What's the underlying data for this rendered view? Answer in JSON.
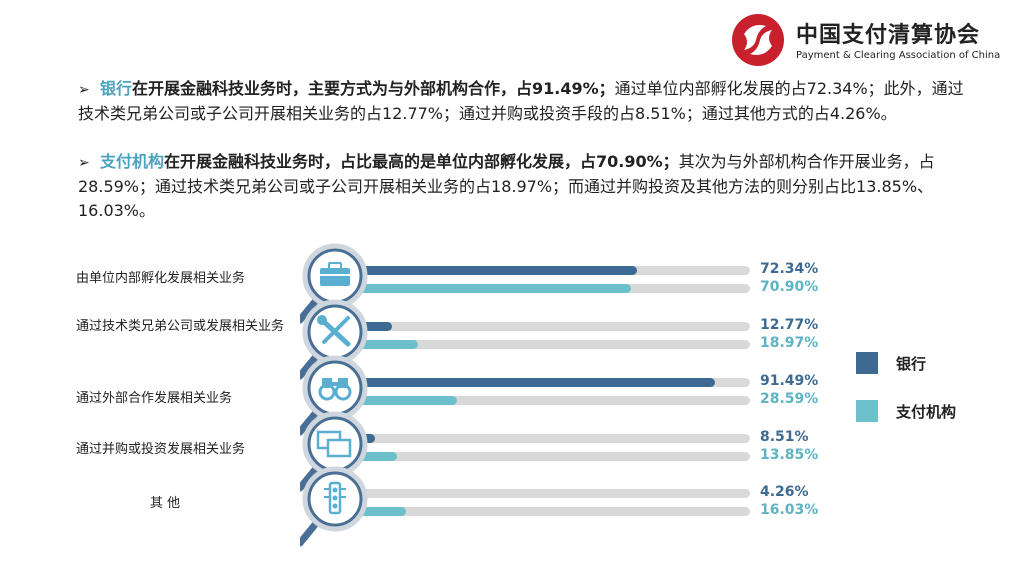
{
  "logo": {
    "name_cn": "中国支付清算协会",
    "name_en": "Payment & Clearing Association of China"
  },
  "paragraphs": [
    {
      "bullet": "➢",
      "key": "银行",
      "strong": "在开展金融科技业务时，主要方式为与外部机构合作，占91.49%；",
      "rest": "通过单位内部孵化发展的占72.34%；此外，通过技术类兄弟公司或子公司开展相关业务的占12.77%；通过并购或投资手段的占8.51%；通过其他方式的占4.26%。"
    },
    {
      "bullet": "➢",
      "key": "支付机构",
      "strong": "在开展金融科技业务时，占比最高的是单位内部孵化发展，占70.90%；",
      "rest": "其次为与外部机构合作开展业务，占28.59%；通过技术类兄弟公司或子公司开展相关业务的占18.97%；而通过并购投资及其他方法的则分别占比13.85%、16.03%。"
    }
  ],
  "colors": {
    "bank": "#3d6a93",
    "pay": "#6cc0cc",
    "track": "#d9d9d9",
    "icon_ring": "#4a6f95"
  },
  "chart_data": {
    "type": "bar",
    "orientation": "horizontal",
    "categories": [
      "由单位内部孵化发展相关业务",
      "通过技术类兄弟公司或发展相关业务",
      "通过外部合作发展相关业务",
      "通过并购或投资发展相关业务",
      "其 他"
    ],
    "category_icons": [
      "toolbox-icon",
      "wrench-screwdriver-icon",
      "binoculars-icon",
      "windows-icon",
      "traffic-light-icon"
    ],
    "series": [
      {
        "name": "银行",
        "values": [
          72.34,
          12.77,
          91.49,
          8.51,
          4.26
        ],
        "labels": [
          "72.34%",
          "12.77%",
          "91.49%",
          "8.51%",
          "4.26%"
        ]
      },
      {
        "name": "支付机构",
        "values": [
          70.9,
          18.97,
          28.59,
          13.85,
          16.03
        ],
        "labels": [
          "70.90%",
          "18.97%",
          "28.59%",
          "13.85%",
          "16.03%"
        ]
      }
    ],
    "xlim": [
      0,
      100
    ],
    "legend": "right",
    "grid": false
  }
}
